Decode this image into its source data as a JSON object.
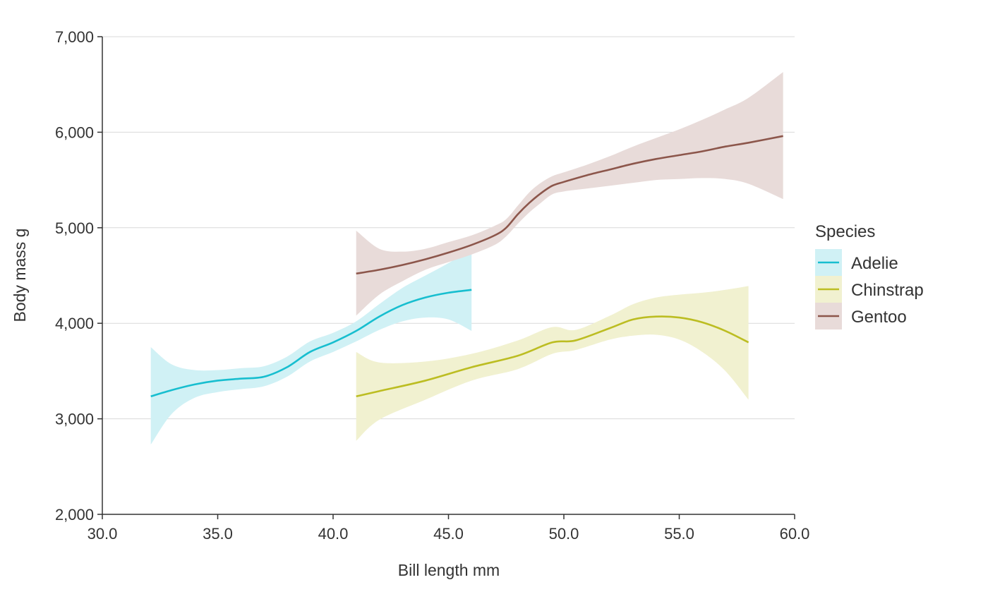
{
  "chart_data": {
    "type": "line",
    "title": "",
    "xlabel": "Bill length mm",
    "ylabel": "Body mass g",
    "xlim": [
      30,
      60
    ],
    "ylim": [
      2000,
      7000
    ],
    "x_ticks": [
      30,
      35,
      40,
      45,
      50,
      55,
      60
    ],
    "x_tick_labels": [
      "30.0",
      "35.0",
      "40.0",
      "45.0",
      "50.0",
      "55.0",
      "60.0"
    ],
    "y_ticks": [
      2000,
      3000,
      4000,
      5000,
      6000,
      7000
    ],
    "y_tick_labels": [
      "2,000",
      "3,000",
      "4,000",
      "5,000",
      "6,000",
      "7,000"
    ],
    "grid": "horizontal",
    "legend": {
      "title": "Species",
      "placement": "right"
    },
    "series": [
      {
        "name": "Adelie",
        "color": "#17becf",
        "band_color": "#d0f1f5",
        "x": [
          32.1,
          33,
          34,
          35,
          36,
          37,
          38,
          39,
          40,
          41,
          42,
          43,
          44,
          45,
          46
        ],
        "y": [
          3235,
          3300,
          3360,
          3400,
          3420,
          3440,
          3540,
          3700,
          3800,
          3920,
          4070,
          4190,
          4270,
          4320,
          4350
        ],
        "lower": [
          2730,
          3050,
          3220,
          3280,
          3310,
          3340,
          3440,
          3600,
          3700,
          3810,
          3930,
          4020,
          4060,
          4040,
          3920
        ],
        "upper": [
          3750,
          3570,
          3510,
          3510,
          3530,
          3550,
          3650,
          3810,
          3900,
          4020,
          4200,
          4370,
          4500,
          4630,
          4780
        ]
      },
      {
        "name": "Chinstrap",
        "color": "#bcbd22",
        "band_color": "#f1f1d0",
        "x": [
          41,
          42,
          44,
          46,
          48,
          49.5,
          50.5,
          52,
          53,
          54,
          55,
          56,
          57,
          58
        ],
        "y": [
          3235,
          3290,
          3400,
          3540,
          3660,
          3800,
          3820,
          3950,
          4040,
          4070,
          4060,
          4010,
          3920,
          3800
        ],
        "lower": [
          2770,
          2990,
          3200,
          3400,
          3520,
          3680,
          3720,
          3830,
          3870,
          3880,
          3830,
          3700,
          3500,
          3200
        ],
        "upper": [
          3700,
          3590,
          3600,
          3680,
          3820,
          3960,
          3930,
          4080,
          4200,
          4270,
          4300,
          4320,
          4350,
          4390
        ]
      },
      {
        "name": "Gentoo",
        "color": "#8c564b",
        "band_color": "#e8dbd9",
        "x": [
          41,
          42,
          43,
          44,
          45,
          46,
          47,
          47.5,
          48,
          48.5,
          49,
          49.5,
          50,
          51,
          52,
          53,
          54,
          55,
          56,
          57,
          58,
          59.5
        ],
        "y": [
          4520,
          4560,
          4610,
          4670,
          4740,
          4820,
          4920,
          5000,
          5140,
          5260,
          5360,
          5440,
          5480,
          5550,
          5610,
          5670,
          5720,
          5760,
          5800,
          5850,
          5890,
          5960
        ],
        "lower": [
          4080,
          4300,
          4440,
          4560,
          4640,
          4720,
          4820,
          4910,
          5040,
          5160,
          5260,
          5350,
          5380,
          5410,
          5440,
          5470,
          5500,
          5510,
          5520,
          5510,
          5460,
          5300
        ],
        "upper": [
          4970,
          4780,
          4750,
          4780,
          4850,
          4920,
          5020,
          5090,
          5230,
          5370,
          5470,
          5540,
          5580,
          5660,
          5750,
          5850,
          5940,
          6030,
          6130,
          6240,
          6360,
          6630
        ]
      }
    ]
  }
}
